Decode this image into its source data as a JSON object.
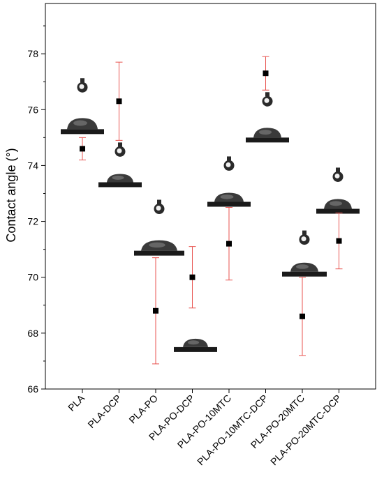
{
  "chart_data": {
    "type": "scatter",
    "ylabel": "Contact angle (°)",
    "xlabel": "",
    "ylim": [
      66,
      79.8
    ],
    "yticks": [
      "66",
      "68",
      "70",
      "72",
      "74",
      "76",
      "78"
    ],
    "categories": [
      "PLA",
      "PLA-DCP",
      "PLA-PO",
      "PLA-PO-DCP",
      "PLA-PO-10MTC",
      "PLA-PO-10MTC-DCP",
      "PLA-PO-20MTC",
      "PLA-PO-20MTC-DCP"
    ],
    "values": [
      74.6,
      76.3,
      68.8,
      70.0,
      71.2,
      77.3,
      68.6,
      71.3
    ],
    "error_low": [
      74.2,
      74.9,
      66.9,
      68.9,
      69.9,
      76.7,
      67.2,
      70.3
    ],
    "error_high": [
      75.0,
      77.7,
      70.7,
      71.1,
      72.5,
      77.9,
      70.0,
      72.3
    ],
    "grid": false,
    "marker_color": "#000000",
    "errorbar_color": "#e8534f"
  }
}
